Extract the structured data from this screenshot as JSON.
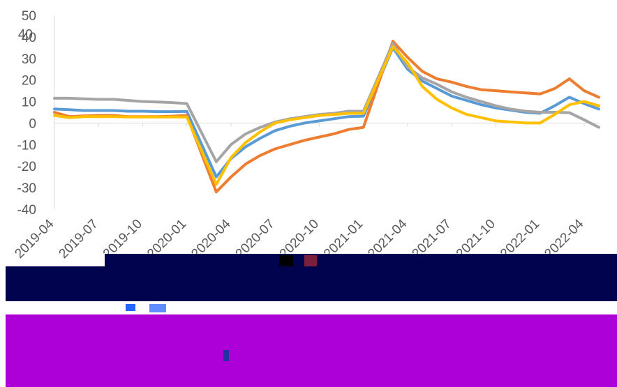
{
  "chart_data": {
    "type": "line",
    "x": [
      "2019-04",
      "2019-05",
      "2019-06",
      "2019-07",
      "2019-08",
      "2019-09",
      "2019-10",
      "2019-11",
      "2019-12",
      "2020-01",
      "2020-03",
      "2020-04",
      "2020-05",
      "2020-06",
      "2020-07",
      "2020-08",
      "2020-09",
      "2020-10",
      "2020-11",
      "2020-12",
      "2021-01",
      "2021-03",
      "2021-04",
      "2021-05",
      "2021-06",
      "2021-07",
      "2021-08",
      "2021-09",
      "2021-10",
      "2021-11",
      "2021-12",
      "2022-01",
      "2022-02",
      "2022-03",
      "2022-04",
      "2022-05"
    ],
    "xticks": [
      "2019-04",
      "2019-07",
      "2019-10",
      "2020-01",
      "2020-04",
      "2020-07",
      "2020-10",
      "2021-01",
      "2021-04",
      "2021-07",
      "2021-10",
      "2022-01",
      "2022-04"
    ],
    "ylim": [
      -40,
      50
    ],
    "yticks": [
      -40,
      -30,
      -20,
      -10,
      0,
      10,
      20,
      30,
      40,
      50
    ],
    "grid": false,
    "colors": [
      "#5b9bd5",
      "#ed7d31",
      "#a5a5a5",
      "#ffc000"
    ],
    "series": [
      {
        "color": "#5b9bd5",
        "values": [
          6.5,
          6.2,
          5.8,
          5.8,
          5.8,
          5.5,
          5.5,
          5.3,
          5.3,
          5.4,
          -25,
          -16.5,
          -11,
          -7,
          -3.5,
          -1.5,
          0,
          1,
          2,
          3,
          3.2,
          35,
          25,
          19.5,
          16,
          12.5,
          10.5,
          8.5,
          7,
          6,
          5,
          4.5,
          8,
          12,
          9,
          6.5
        ]
      },
      {
        "color": "#ed7d31",
        "values": [
          5,
          3,
          3.3,
          3.5,
          3.5,
          3,
          3,
          3,
          3.2,
          3.5,
          -32,
          -25,
          -19,
          -15,
          -12,
          -10,
          -8,
          -6.5,
          -5,
          -3,
          -2,
          38,
          30.5,
          24,
          20.5,
          19,
          17,
          15.5,
          15,
          14.5,
          14,
          13.5,
          16,
          20.5,
          15,
          12
        ]
      },
      {
        "color": "#a5a5a5",
        "values": [
          11.5,
          11.5,
          11.2,
          11,
          11,
          10.5,
          10,
          9.8,
          9.5,
          9,
          -18,
          -10,
          -5,
          -2,
          0.5,
          2,
          3,
          4,
          4.5,
          5.5,
          5.5,
          37,
          26,
          21,
          18,
          14.5,
          12,
          10,
          8,
          6.5,
          5.5,
          5,
          5,
          4.8,
          1.5,
          -2
        ]
      },
      {
        "color": "#ffc000",
        "values": [
          3.5,
          2.5,
          3,
          3,
          3,
          2.8,
          2.8,
          2.8,
          2.8,
          2.8,
          -28.5,
          -16,
          -9,
          -4,
          0,
          1.5,
          2.5,
          3.5,
          4,
          4.5,
          4.5,
          35.5,
          28,
          17,
          11,
          7,
          4,
          2.5,
          1,
          0.5,
          0,
          0,
          4,
          8.5,
          10,
          8
        ]
      }
    ]
  }
}
